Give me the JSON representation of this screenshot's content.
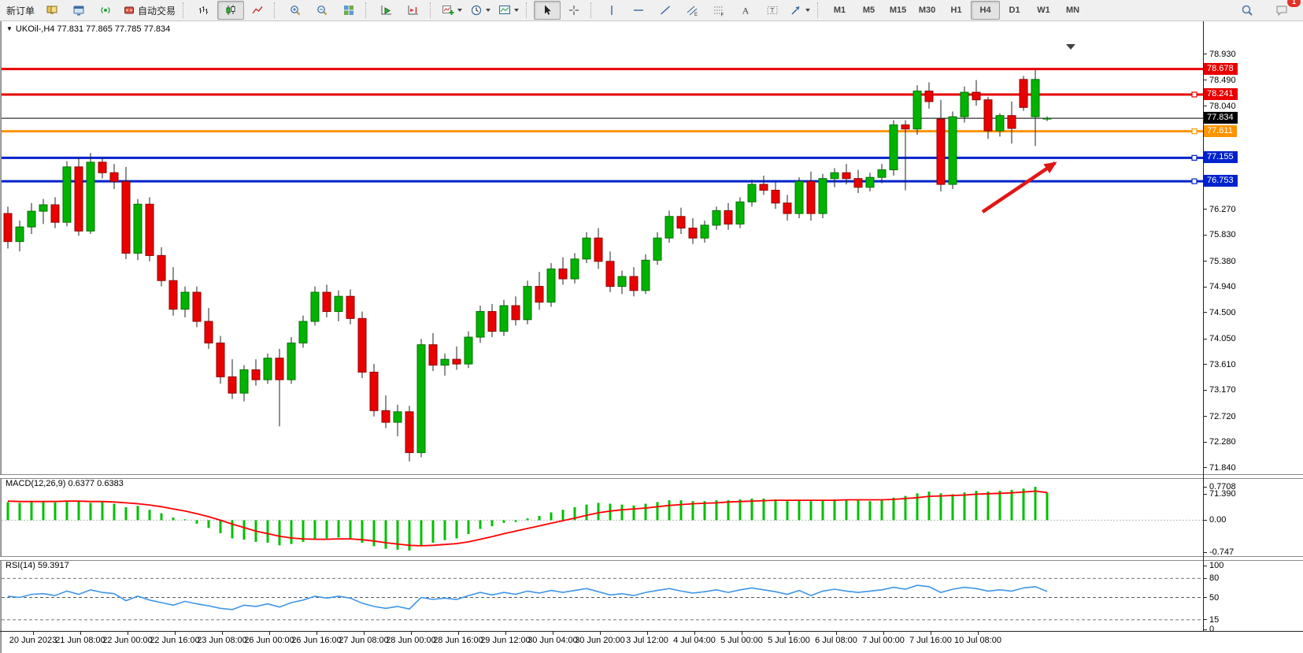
{
  "toolbar": {
    "new_order_label": "新订单",
    "autotrade_label": "自动交易",
    "timeframes": [
      "M1",
      "M5",
      "M15",
      "M30",
      "H1",
      "H4",
      "D1",
      "W1",
      "MN"
    ],
    "active_timeframe": "H4",
    "chat_badge": "1"
  },
  "chart_data": {
    "type": "candlestick",
    "symbol": "UKOil-",
    "timeframe": "H4",
    "title_text": "UKOil-,H4  77.831 77.865 77.785 77.834",
    "ohlc_display": {
      "open": "77.831",
      "high": "77.865",
      "low": "77.785",
      "close": "77.834"
    },
    "x_labels": [
      "20 Jun 2023",
      "21 Jun 08:00",
      "22 Jun 00:00",
      "22 Jun 16:00",
      "23 Jun 08:00",
      "26 Jun 00:00",
      "26 Jun 16:00",
      "27 Jun 08:00",
      "28 Jun 00:00",
      "28 Jun 16:00",
      "29 Jun 12:00",
      "30 Jun 04:00",
      "30 Jun 20:00",
      "3 Jul 12:00",
      "4 Jul 04:00",
      "5 Jul 00:00",
      "5 Jul 16:00",
      "6 Jul 08:00",
      "7 Jul 00:00",
      "7 Jul 16:00",
      "10 Jul 08:00"
    ],
    "main": {
      "ylim": [
        71.365,
        79.119
      ],
      "grid": false,
      "axis_ticks": [
        78.93,
        78.49,
        78.04,
        77.6,
        77.16,
        76.71,
        76.27,
        75.83,
        75.38,
        74.94,
        74.5,
        74.05,
        73.61,
        73.17,
        72.72,
        72.28,
        71.84,
        71.39
      ],
      "colors": {
        "up": "#00B300",
        "up_border": "#007300",
        "down": "#EA0000",
        "down_border": "#900000",
        "wick": "#222222"
      },
      "hlines": [
        {
          "price": 78.678,
          "label": "78.678",
          "color": "#E80000",
          "width": 3,
          "handle": false
        },
        {
          "price": 78.241,
          "label": "78.241",
          "color": "#E80000",
          "width": 3,
          "handle": true
        },
        {
          "price": 77.611,
          "label": "77.611",
          "color": "#FF9400",
          "width": 3,
          "handle": true
        },
        {
          "price": 77.155,
          "label": "77.155",
          "color": "#0022CC",
          "width": 3,
          "handle": true
        },
        {
          "price": 76.753,
          "label": "76.753",
          "color": "#0022CC",
          "width": 3,
          "handle": true
        }
      ],
      "current_price": {
        "price": 77.834,
        "label": "77.834",
        "color": "#000000"
      },
      "arrow": {
        "from": {
          "x": 1246,
          "y": 214
        },
        "to": {
          "x": 1338,
          "y": 152
        },
        "color": "#E01616"
      },
      "candles": [
        [
          76.2,
          76.32,
          75.6,
          75.72
        ],
        [
          75.72,
          76.08,
          75.55,
          75.97
        ],
        [
          75.97,
          76.38,
          75.85,
          76.24
        ],
        [
          76.24,
          76.45,
          76.02,
          76.35
        ],
        [
          76.35,
          76.48,
          75.95,
          76.05
        ],
        [
          76.05,
          77.1,
          75.98,
          77.0
        ],
        [
          77.0,
          77.16,
          75.82,
          75.9
        ],
        [
          75.9,
          77.24,
          75.85,
          77.08
        ],
        [
          77.08,
          77.15,
          76.8,
          76.9
        ],
        [
          76.9,
          77.05,
          76.62,
          76.75
        ],
        [
          76.75,
          77.0,
          75.42,
          75.52
        ],
        [
          75.52,
          76.45,
          75.4,
          76.36
        ],
        [
          76.36,
          76.48,
          75.38,
          75.48
        ],
        [
          75.48,
          75.62,
          74.95,
          75.05
        ],
        [
          75.05,
          75.28,
          74.45,
          74.56
        ],
        [
          74.56,
          74.95,
          74.42,
          74.85
        ],
        [
          74.85,
          74.95,
          74.25,
          74.35
        ],
        [
          74.35,
          74.58,
          73.88,
          73.98
        ],
        [
          73.98,
          74.1,
          73.28,
          73.4
        ],
        [
          73.4,
          73.7,
          73.02,
          73.12
        ],
        [
          73.12,
          73.6,
          72.98,
          73.52
        ],
        [
          73.52,
          73.7,
          73.25,
          73.35
        ],
        [
          73.35,
          73.8,
          73.28,
          73.72
        ],
        [
          73.72,
          73.88,
          72.55,
          73.35
        ],
        [
          73.35,
          74.08,
          73.28,
          73.98
        ],
        [
          73.98,
          74.45,
          73.9,
          74.35
        ],
        [
          74.35,
          74.95,
          74.28,
          74.85
        ],
        [
          74.85,
          74.98,
          74.42,
          74.52
        ],
        [
          74.52,
          74.88,
          74.35,
          74.78
        ],
        [
          74.78,
          74.9,
          74.3,
          74.4
        ],
        [
          74.4,
          74.52,
          73.38,
          73.48
        ],
        [
          73.48,
          73.62,
          72.72,
          72.82
        ],
        [
          72.82,
          73.08,
          72.52,
          72.62
        ],
        [
          72.62,
          72.92,
          72.38,
          72.8
        ],
        [
          72.8,
          72.9,
          71.95,
          72.1
        ],
        [
          72.1,
          74.05,
          72.02,
          73.95
        ],
        [
          73.95,
          74.15,
          73.5,
          73.6
        ],
        [
          73.6,
          73.8,
          73.42,
          73.7
        ],
        [
          73.7,
          73.92,
          73.52,
          73.62
        ],
        [
          73.62,
          74.18,
          73.55,
          74.08
        ],
        [
          74.08,
          74.62,
          73.98,
          74.52
        ],
        [
          74.52,
          74.65,
          74.08,
          74.18
        ],
        [
          74.18,
          74.72,
          74.1,
          74.62
        ],
        [
          74.62,
          74.78,
          74.28,
          74.38
        ],
        [
          74.38,
          75.05,
          74.3,
          74.95
        ],
        [
          74.95,
          75.2,
          74.55,
          74.68
        ],
        [
          74.68,
          75.35,
          74.6,
          75.25
        ],
        [
          75.25,
          75.45,
          74.98,
          75.08
        ],
        [
          75.08,
          75.52,
          75.0,
          75.42
        ],
        [
          75.42,
          75.88,
          75.35,
          75.78
        ],
        [
          75.78,
          75.95,
          75.25,
          75.38
        ],
        [
          75.38,
          75.55,
          74.85,
          74.95
        ],
        [
          74.95,
          75.22,
          74.82,
          75.12
        ],
        [
          75.12,
          75.28,
          74.78,
          74.88
        ],
        [
          74.88,
          75.5,
          74.82,
          75.4
        ],
        [
          75.4,
          75.88,
          75.32,
          75.78
        ],
        [
          75.78,
          76.25,
          75.7,
          76.15
        ],
        [
          76.15,
          76.3,
          75.85,
          75.95
        ],
        [
          75.95,
          76.12,
          75.68,
          75.78
        ],
        [
          75.78,
          76.08,
          75.7,
          76.0
        ],
        [
          76.0,
          76.32,
          75.92,
          76.25
        ],
        [
          76.25,
          76.38,
          75.92,
          76.02
        ],
        [
          76.02,
          76.48,
          75.95,
          76.4
        ],
        [
          76.4,
          76.78,
          76.32,
          76.7
        ],
        [
          76.7,
          76.85,
          76.52,
          76.6
        ],
        [
          76.6,
          76.75,
          76.28,
          76.38
        ],
        [
          76.38,
          76.52,
          76.08,
          76.2
        ],
        [
          76.2,
          76.82,
          76.12,
          76.75
        ],
        [
          76.75,
          76.92,
          76.08,
          76.2
        ],
        [
          76.2,
          76.88,
          76.12,
          76.8
        ],
        [
          76.8,
          76.98,
          76.65,
          76.9
        ],
        [
          76.9,
          77.05,
          76.7,
          76.8
        ],
        [
          76.8,
          76.95,
          76.55,
          76.65
        ],
        [
          76.65,
          76.9,
          76.58,
          76.82
        ],
        [
          76.82,
          77.05,
          76.72,
          76.95
        ],
        [
          76.95,
          77.8,
          76.85,
          77.72
        ],
        [
          77.72,
          77.8,
          76.6,
          77.65
        ],
        [
          77.65,
          78.4,
          77.55,
          78.3
        ],
        [
          78.3,
          78.45,
          78.0,
          78.12
        ],
        [
          77.82,
          78.15,
          76.58,
          76.7
        ],
        [
          76.7,
          77.95,
          76.62,
          77.86
        ],
        [
          77.86,
          78.38,
          77.76,
          78.28
        ],
        [
          78.28,
          78.49,
          78.05,
          78.15
        ],
        [
          78.15,
          78.2,
          77.48,
          77.62
        ],
        [
          77.62,
          77.92,
          77.52,
          77.88
        ],
        [
          77.88,
          78.12,
          77.4,
          77.66
        ],
        [
          78.5,
          78.56,
          77.96,
          78.02
        ],
        [
          77.86,
          78.68,
          77.36,
          78.5
        ],
        [
          77.831,
          77.865,
          77.785,
          77.834
        ]
      ]
    },
    "macd": {
      "label": "MACD(12,26,9) 0.6377 0.6383",
      "value": "0.6377",
      "signal_value": "0.6383",
      "ylim": [
        -0.829,
        0.989
      ],
      "axis_ticks": [
        {
          "v": 0.7708,
          "label": "0.7708"
        },
        {
          "v": 0,
          "label": "0.00"
        },
        {
          "v": -0.747,
          "label": "-0.747"
        }
      ],
      "colors": {
        "histogram": "#00C000",
        "signal": "#FF0000"
      },
      "histogram": [
        0.42,
        0.4,
        0.43,
        0.44,
        0.41,
        0.45,
        0.44,
        0.4,
        0.43,
        0.38,
        0.3,
        0.33,
        0.24,
        0.16,
        0.06,
        0.02,
        -0.08,
        -0.18,
        -0.3,
        -0.42,
        -0.45,
        -0.5,
        -0.52,
        -0.58,
        -0.55,
        -0.5,
        -0.44,
        -0.42,
        -0.4,
        -0.44,
        -0.52,
        -0.6,
        -0.66,
        -0.68,
        -0.7,
        -0.6,
        -0.52,
        -0.46,
        -0.42,
        -0.32,
        -0.2,
        -0.14,
        -0.06,
        -0.04,
        0.04,
        0.1,
        0.18,
        0.24,
        0.3,
        0.36,
        0.4,
        0.38,
        0.36,
        0.34,
        0.38,
        0.42,
        0.46,
        0.46,
        0.44,
        0.44,
        0.46,
        0.46,
        0.48,
        0.5,
        0.5,
        0.48,
        0.44,
        0.46,
        0.44,
        0.46,
        0.48,
        0.48,
        0.46,
        0.44,
        0.46,
        0.52,
        0.56,
        0.62,
        0.66,
        0.62,
        0.6,
        0.64,
        0.68,
        0.66,
        0.68,
        0.7,
        0.73,
        0.77,
        0.64
      ],
      "signal": [
        0.44,
        0.43,
        0.43,
        0.43,
        0.43,
        0.44,
        0.44,
        0.43,
        0.43,
        0.42,
        0.4,
        0.38,
        0.35,
        0.31,
        0.26,
        0.21,
        0.15,
        0.08,
        0.0,
        -0.09,
        -0.17,
        -0.25,
        -0.31,
        -0.37,
        -0.41,
        -0.43,
        -0.44,
        -0.44,
        -0.43,
        -0.43,
        -0.45,
        -0.48,
        -0.52,
        -0.55,
        -0.58,
        -0.59,
        -0.58,
        -0.56,
        -0.54,
        -0.5,
        -0.44,
        -0.38,
        -0.31,
        -0.25,
        -0.19,
        -0.13,
        -0.07,
        -0.01,
        0.05,
        0.11,
        0.17,
        0.21,
        0.24,
        0.26,
        0.28,
        0.31,
        0.34,
        0.36,
        0.38,
        0.39,
        0.4,
        0.42,
        0.43,
        0.44,
        0.45,
        0.46,
        0.46,
        0.46,
        0.46,
        0.46,
        0.46,
        0.47,
        0.47,
        0.47,
        0.47,
        0.48,
        0.5,
        0.52,
        0.55,
        0.56,
        0.57,
        0.58,
        0.6,
        0.61,
        0.62,
        0.63,
        0.65,
        0.67,
        0.6383
      ]
    },
    "rsi": {
      "label": "RSI(14) 59.3917",
      "value": "59.3917",
      "ylim": [
        -2.4,
        109.9
      ],
      "axis_ticks": [
        {
          "v": 100,
          "label": "100"
        },
        {
          "v": 80,
          "label": "80"
        },
        {
          "v": 50,
          "label": "50"
        },
        {
          "v": 15,
          "label": "15"
        },
        {
          "v": 0,
          "label": "0"
        }
      ],
      "levels": [
        80,
        50,
        15
      ],
      "color": "#3E96E8",
      "values": [
        52,
        50,
        55,
        56,
        53,
        60,
        55,
        62,
        58,
        56,
        45,
        52,
        46,
        42,
        38,
        44,
        40,
        37,
        33,
        31,
        38,
        36,
        40,
        35,
        42,
        46,
        52,
        49,
        52,
        49,
        41,
        36,
        33,
        36,
        32,
        50,
        47,
        49,
        47,
        53,
        58,
        54,
        58,
        55,
        60,
        57,
        61,
        58,
        61,
        64,
        59,
        54,
        56,
        53,
        58,
        61,
        64,
        60,
        57,
        59,
        62,
        58,
        62,
        65,
        62,
        59,
        55,
        61,
        53,
        60,
        63,
        60,
        58,
        60,
        62,
        66,
        63,
        69,
        67,
        58,
        63,
        66,
        64,
        60,
        62,
        60,
        65,
        67,
        59.39
      ]
    }
  }
}
